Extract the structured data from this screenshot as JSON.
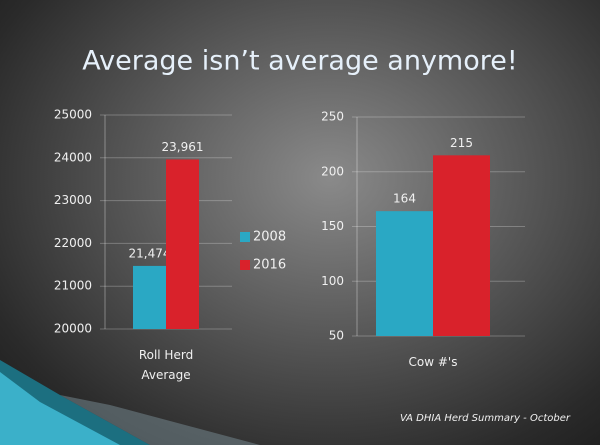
{
  "title": "Average isn’t average anymore!",
  "footer": "VA DHIA Herd Summary - October",
  "chart_data": [
    {
      "type": "bar",
      "categories": [
        "Roll Herd Average"
      ],
      "series": [
        {
          "name": "2008",
          "color": "#2aa8c4",
          "values": [
            21474
          ],
          "value_labels": [
            "21,474"
          ]
        },
        {
          "name": "2016",
          "color": "#d9222b",
          "values": [
            23961
          ],
          "value_labels": [
            "23,961"
          ]
        }
      ],
      "ylim": [
        20000,
        25000
      ],
      "yticks": [
        20000,
        21000,
        22000,
        23000,
        24000,
        25000
      ],
      "grid": true,
      "legend": "right"
    },
    {
      "type": "bar",
      "categories": [
        "Cow #'s"
      ],
      "series": [
        {
          "color": "#2aa8c4",
          "values": [
            164
          ]
        },
        {
          "color": "#d9222b",
          "values": [
            215
          ]
        }
      ],
      "ylim": [
        50,
        250
      ],
      "yticks": [
        50,
        100,
        150,
        200,
        250
      ],
      "grid": true
    }
  ]
}
